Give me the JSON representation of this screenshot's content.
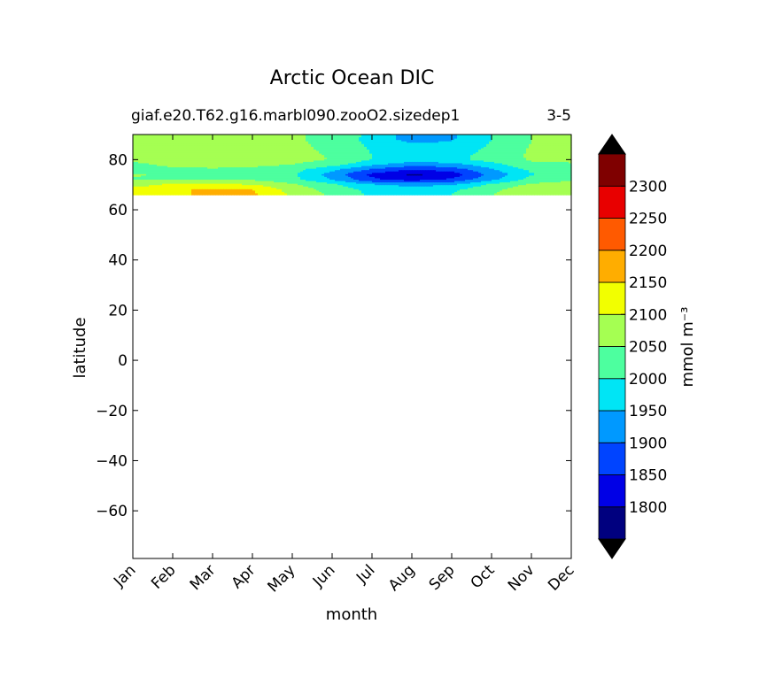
{
  "chart_data": {
    "type": "heatmap",
    "title": "Arctic Ocean DIC",
    "subtitle_left": "giaf.e20.T62.g16.marbl090.zooO2.sizedep1",
    "subtitle_right": "3-5",
    "xlabel": "month",
    "ylabel": "latitude",
    "x_categories": [
      "Jan",
      "Feb",
      "Mar",
      "Apr",
      "May",
      "Jun",
      "Jul",
      "Aug",
      "Sep",
      "Oct",
      "Nov",
      "Dec"
    ],
    "ylim": [
      -79,
      90
    ],
    "y_ticks": [
      80,
      60,
      40,
      20,
      0,
      -20,
      -40,
      -60
    ],
    "y_tick_labels": [
      "80",
      "60",
      "40",
      "20",
      "0",
      "−20",
      "−40",
      "−60"
    ],
    "data_lat_range": [
      66,
      90
    ],
    "colorbar": {
      "label": "mmol m⁻³",
      "levels": [
        1750,
        1800,
        1850,
        1900,
        1950,
        2000,
        2050,
        2100,
        2150,
        2200,
        2250,
        2300,
        2350
      ],
      "tick_labels": [
        "1800",
        "1850",
        "1900",
        "1950",
        "2000",
        "2050",
        "2100",
        "2150",
        "2200",
        "2250",
        "2300"
      ],
      "colors": [
        "#00007f",
        "#0000e6",
        "#0044ff",
        "#0099ff",
        "#00e5f5",
        "#4dff9f",
        "#a5ff52",
        "#f2ff00",
        "#ffad00",
        "#ff5a00",
        "#e80000",
        "#7f0000"
      ],
      "extend_colors": {
        "below": "#000000",
        "above": "#000000"
      }
    },
    "field": {
      "lat": [
        90,
        88,
        86,
        84,
        82,
        80,
        78,
        76,
        74,
        72,
        70,
        68,
        66
      ],
      "months": [
        1,
        2,
        3,
        4,
        5,
        6,
        7,
        8,
        9,
        10,
        11,
        12
      ],
      "values": [
        [
          2060,
          2065,
          2065,
          2065,
          2060,
          2030,
          1990,
          1920,
          1940,
          2000,
          2050,
          2055
        ],
        [
          2060,
          2065,
          2065,
          2065,
          2060,
          2030,
          1985,
          1930,
          1945,
          2000,
          2050,
          2055
        ],
        [
          2062,
          2066,
          2067,
          2066,
          2062,
          2035,
          1990,
          1960,
          1960,
          2005,
          2052,
          2058
        ],
        [
          2064,
          2068,
          2068,
          2068,
          2064,
          2040,
          1995,
          1975,
          1975,
          2010,
          2055,
          2060
        ],
        [
          2066,
          2070,
          2070,
          2070,
          2066,
          2045,
          2000,
          1985,
          1985,
          2015,
          2058,
          2062
        ],
        [
          2060,
          2070,
          2072,
          2072,
          2066,
          2048,
          2000,
          1980,
          1985,
          2020,
          2055,
          2058
        ],
        [
          2040,
          2060,
          2062,
          2060,
          2050,
          2020,
          1960,
          1920,
          1930,
          1980,
          2040,
          2045
        ],
        [
          2030,
          2040,
          2045,
          2040,
          2020,
          1960,
          1890,
          1850,
          1870,
          1945,
          2010,
          2030
        ],
        [
          2055,
          2040,
          2040,
          2035,
          2010,
          1930,
          1840,
          1790,
          1820,
          1915,
          1995,
          2035
        ],
        [
          2045,
          2050,
          2050,
          2045,
          2015,
          1950,
          1860,
          1830,
          1860,
          1940,
          2020,
          2045
        ],
        [
          2080,
          2110,
          2110,
          2100,
          2060,
          2010,
          1955,
          1935,
          1945,
          2010,
          2060,
          2070
        ],
        [
          2120,
          2140,
          2160,
          2150,
          2080,
          2030,
          1985,
          1975,
          1990,
          2040,
          2080,
          2095
        ],
        [
          2105,
          2135,
          2170,
          2160,
          2090,
          2040,
          1990,
          1985,
          2000,
          2050,
          2090,
          2100
        ]
      ]
    }
  }
}
